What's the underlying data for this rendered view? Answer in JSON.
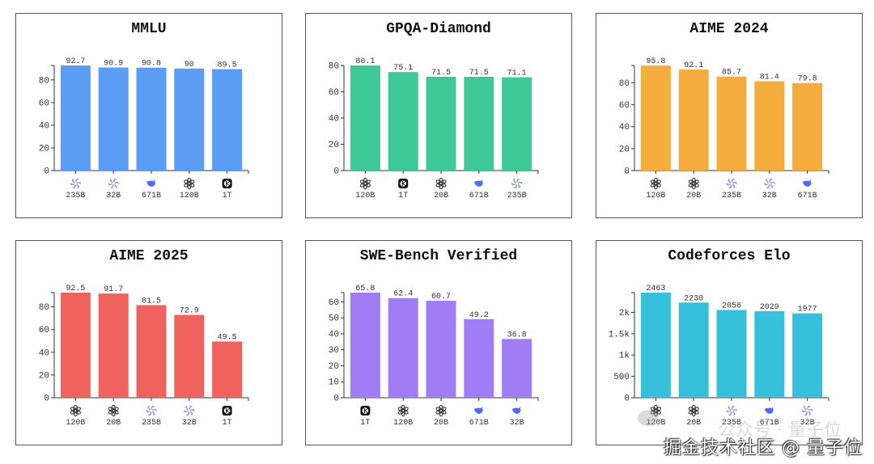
{
  "chart_data": [
    {
      "type": "bar",
      "title": "MMLU",
      "color": "#5b9cf5",
      "categories": [
        "235B",
        "32B",
        "671B",
        "120B",
        "1T"
      ],
      "icons": [
        "qwen-icon",
        "qwen-icon",
        "deepseek-icon",
        "openai-icon",
        "kimi-icon"
      ],
      "values": [
        92.7,
        90.9,
        90.8,
        90,
        89.5
      ],
      "value_labels": [
        "92.7",
        "90.9",
        "90.8",
        "90",
        "89.5"
      ],
      "ylim": [
        0,
        92.7
      ],
      "yticks": [
        0,
        20,
        40,
        60,
        80
      ],
      "ytick_labels": [
        "0",
        "20",
        "40",
        "60",
        "80"
      ],
      "xlabel": "",
      "ylabel": "",
      "grid": false
    },
    {
      "type": "bar",
      "title": "GPQA-Diamond",
      "color": "#3ec898",
      "categories": [
        "120B",
        "1T",
        "20B",
        "671B",
        "235B"
      ],
      "icons": [
        "openai-icon",
        "kimi-icon",
        "openai-icon",
        "deepseek-icon",
        "qwen-icon"
      ],
      "values": [
        80.1,
        75.1,
        71.5,
        71.5,
        71.1
      ],
      "value_labels": [
        "80.1",
        "75.1",
        "71.5",
        "71.5",
        "71.1"
      ],
      "ylim": [
        0,
        80.1
      ],
      "yticks": [
        0,
        20,
        40,
        60,
        80
      ],
      "ytick_labels": [
        "0",
        "20",
        "40",
        "60",
        "80"
      ],
      "xlabel": "",
      "ylabel": "",
      "grid": false
    },
    {
      "type": "bar",
      "title": "AIME 2024",
      "color": "#f5ad3e",
      "categories": [
        "120B",
        "20B",
        "235B",
        "32B",
        "671B"
      ],
      "icons": [
        "openai-icon",
        "openai-icon",
        "qwen-icon",
        "qwen-icon",
        "deepseek-icon"
      ],
      "values": [
        95.8,
        92.1,
        85.7,
        81.4,
        79.8
      ],
      "value_labels": [
        "95.8",
        "92.1",
        "85.7",
        "81.4",
        "79.8"
      ],
      "ylim": [
        0,
        95.8
      ],
      "yticks": [
        0,
        20,
        40,
        60,
        80
      ],
      "ytick_labels": [
        "0",
        "20",
        "40",
        "60",
        "80"
      ],
      "xlabel": "",
      "ylabel": "",
      "grid": false
    },
    {
      "type": "bar",
      "title": "AIME 2025",
      "color": "#f0625e",
      "categories": [
        "120B",
        "20B",
        "235B",
        "32B",
        "1T"
      ],
      "icons": [
        "openai-icon",
        "openai-icon",
        "qwen-icon",
        "qwen-icon",
        "kimi-icon"
      ],
      "values": [
        92.5,
        91.7,
        81.5,
        72.9,
        49.5
      ],
      "value_labels": [
        "92.5",
        "91.7",
        "81.5",
        "72.9",
        "49.5"
      ],
      "ylim": [
        0,
        92.5
      ],
      "yticks": [
        0,
        20,
        40,
        60,
        80
      ],
      "ytick_labels": [
        "0",
        "20",
        "40",
        "60",
        "80"
      ],
      "xlabel": "",
      "ylabel": "",
      "grid": false
    },
    {
      "type": "bar",
      "title": "SWE-Bench Verified",
      "color": "#a07cf5",
      "categories": [
        "1T",
        "120B",
        "20B",
        "671B",
        "32B"
      ],
      "icons": [
        "kimi-icon",
        "openai-icon",
        "openai-icon",
        "deepseek-icon",
        "deepseek-icon"
      ],
      "values": [
        65.8,
        62.4,
        60.7,
        49.2,
        36.8
      ],
      "value_labels": [
        "65.8",
        "62.4",
        "60.7",
        "49.2",
        "36.8"
      ],
      "ylim": [
        0,
        65.8
      ],
      "yticks": [
        0,
        10,
        20,
        30,
        40,
        50,
        60
      ],
      "ytick_labels": [
        "0",
        "10",
        "20",
        "30",
        "40",
        "50",
        "60"
      ],
      "xlabel": "",
      "ylabel": "",
      "grid": false
    },
    {
      "type": "bar",
      "title": "Codeforces Elo",
      "color": "#36c0dc",
      "categories": [
        "120B",
        "20B",
        "235B",
        "671B",
        "32B"
      ],
      "icons": [
        "openai-icon",
        "openai-icon",
        "qwen-icon",
        "deepseek-icon",
        "qwen-icon"
      ],
      "values": [
        2463,
        2230,
        2056,
        2029,
        1977
      ],
      "value_labels": [
        "2463",
        "2230",
        "2056",
        "2029",
        "1977"
      ],
      "ylim": [
        0,
        2463
      ],
      "yticks": [
        0,
        500,
        1000,
        1500,
        2000
      ],
      "ytick_labels": [
        "0",
        "500",
        "1k",
        "1.5k",
        "2k"
      ],
      "xlabel": "",
      "ylabel": "",
      "grid": false
    }
  ],
  "watermark": {
    "text": "掘金技术社区 @ 量子位",
    "faint_text": "公众号 · 量子位"
  }
}
